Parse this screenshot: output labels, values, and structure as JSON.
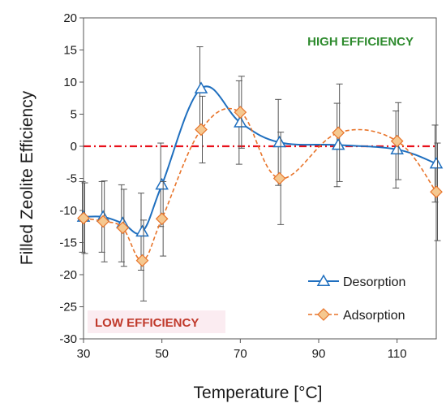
{
  "chart_data": {
    "type": "line",
    "xlabel": "Temperature [°C]",
    "ylabel": "Filled Zeolite Efficiency",
    "xlim": [
      30,
      120
    ],
    "ylim": [
      -30,
      20
    ],
    "xticks": [
      30,
      50,
      70,
      90,
      110
    ],
    "yticks": [
      -30,
      -25,
      -20,
      -15,
      -10,
      -5,
      0,
      5,
      10,
      15,
      20
    ],
    "reference_line": {
      "y": 0,
      "style": "dash-dot",
      "color": "#e8101a"
    },
    "series": [
      {
        "name": "Desorption",
        "color": "#1f6fbf",
        "marker": "triangle",
        "line_style": "solid",
        "x": [
          30,
          35,
          40,
          45,
          50,
          60,
          70,
          80,
          95,
          110,
          120
        ],
        "y": [
          -11.0,
          -11.0,
          -12.0,
          -13.3,
          -6.0,
          9.0,
          3.7,
          0.6,
          0.2,
          -0.5,
          -2.7
        ],
        "error": [
          5.5,
          5.5,
          6.0,
          6.0,
          6.5,
          6.5,
          6.5,
          6.7,
          6.5,
          6.0,
          6.0
        ]
      },
      {
        "name": "Adsorption",
        "color": "#e8742a",
        "fill": "#f5c890",
        "marker": "diamond",
        "line_style": "dashed",
        "x": [
          30,
          35,
          40,
          45,
          50,
          60,
          70,
          80,
          95,
          110,
          120
        ],
        "y": [
          -11.2,
          -11.7,
          -12.7,
          -17.8,
          -11.3,
          2.6,
          5.3,
          -5.0,
          2.1,
          0.8,
          -7.1
        ],
        "error": [
          5.5,
          6.3,
          6.0,
          6.3,
          5.8,
          5.2,
          5.6,
          7.2,
          7.6,
          6.0,
          7.6
        ]
      }
    ],
    "annotations": [
      {
        "text": "HIGH EFFICIENCY",
        "color": "#2e8b2e"
      },
      {
        "text": "LOW EFFICIENCY",
        "color": "#c0392b"
      }
    ],
    "legend_position": "bottom-right"
  }
}
